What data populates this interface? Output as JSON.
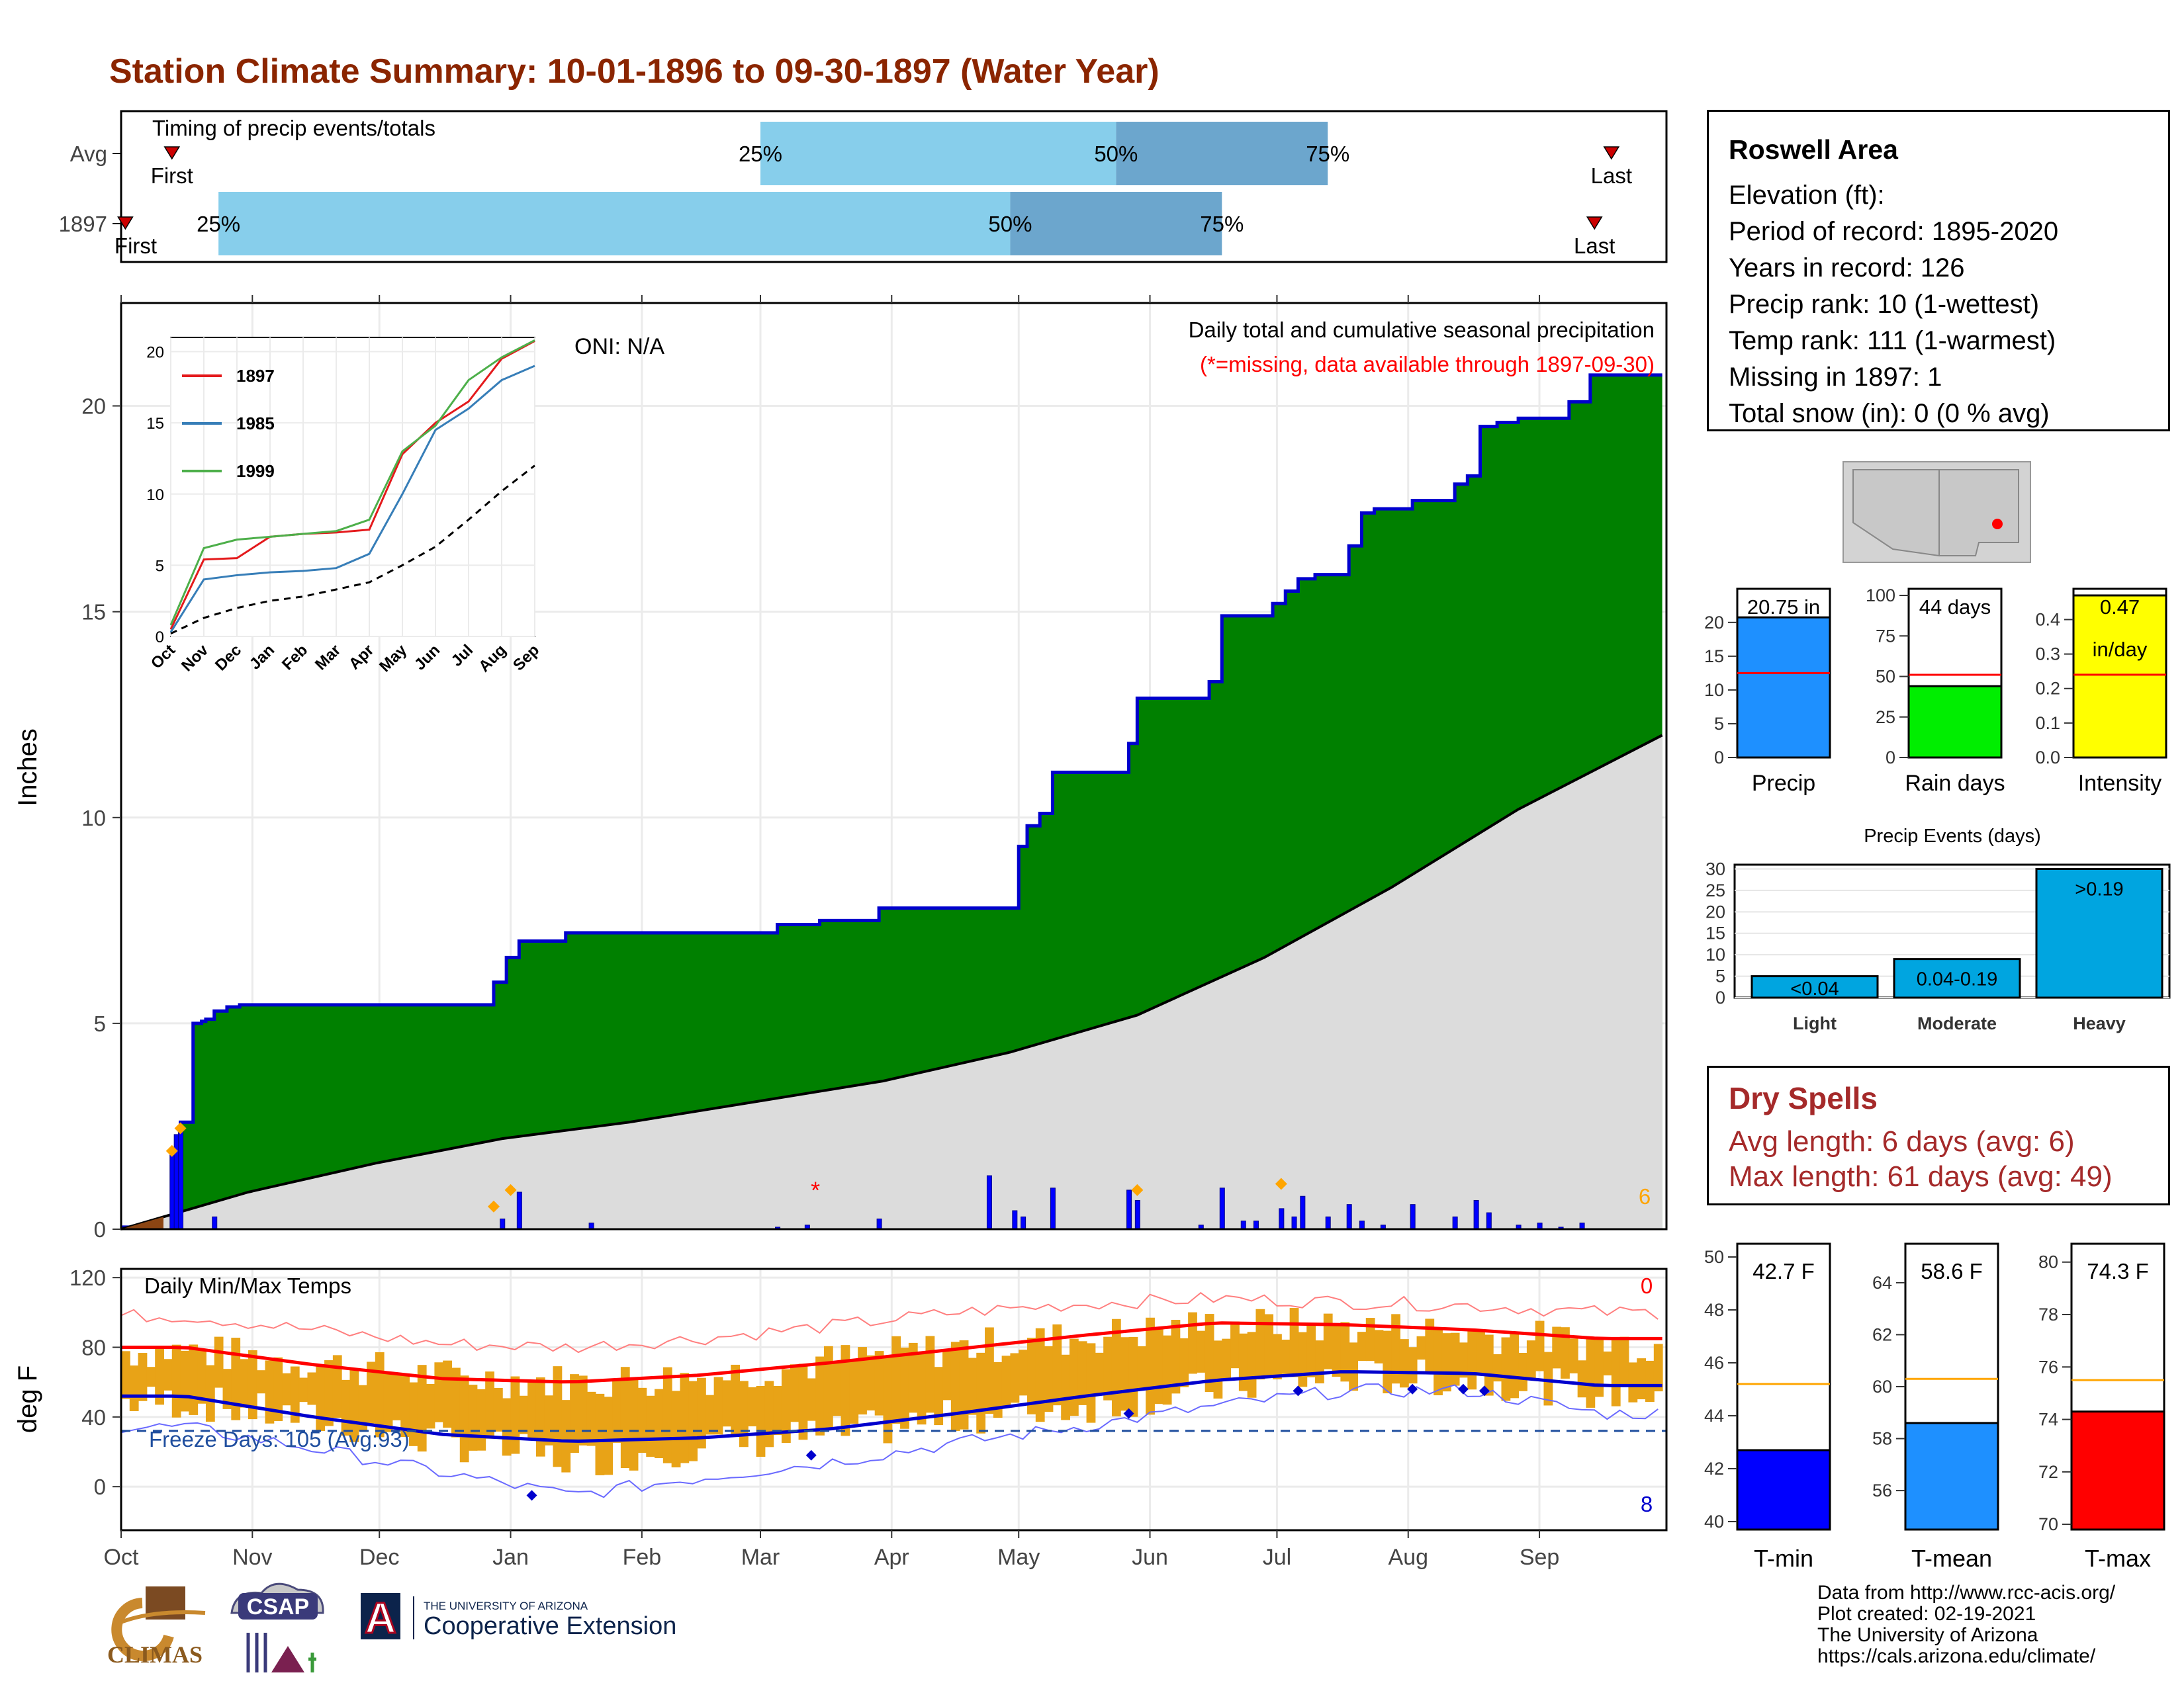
{
  "page": {
    "title": "Station Climate Summary: 10-01-1896 to 09-30-1897 (Water Year)",
    "title_color": "#8B2500"
  },
  "timing_panel": {
    "title": "Timing of precip events/totals",
    "rows": [
      {
        "label": "Avg",
        "first_label": "First",
        "last_label": "Last",
        "first_day": 12,
        "p25_day": 151,
        "p50_day": 235,
        "p75_day": 285,
        "last_day": 352
      },
      {
        "label": "1897",
        "first_label": "First",
        "last_label": "Last",
        "first_day": 1,
        "p25_day": 23,
        "p50_day": 210,
        "p75_day": 260,
        "last_day": 348
      }
    ],
    "pct_labels": [
      "25%",
      "50%",
      "75%"
    ],
    "colors": {
      "light": "#87CEEB",
      "dark": "#6CA6CD",
      "marker": "#CC0000"
    }
  },
  "precip_panel": {
    "title": "Daily total and cumulative seasonal precipitation",
    "missing_note": "(*=missing, data available through 1897-09-30)",
    "oni": "ONI: N/A",
    "y_axis_label": "Inches",
    "y_ticks": [
      "0",
      "5",
      "10",
      "15",
      "20"
    ],
    "corner_count": "6",
    "colors": {
      "cumulative_fill": "#008000",
      "cumulative_line": "#0000CD",
      "normal_fill": "#DCDCDC",
      "daily_bar": "#0000FF",
      "marker": "#FFA500"
    },
    "missing_marker": "*"
  },
  "inset": {
    "y_ticks": [
      "0",
      "5",
      "10",
      "15",
      "20"
    ],
    "x_ticks": [
      "Oct",
      "Nov",
      "Dec",
      "Jan",
      "Feb",
      "Mar",
      "Apr",
      "May",
      "Jun",
      "Jul",
      "Aug",
      "Sep"
    ],
    "legend": [
      {
        "name": "1897",
        "color": "#E41A1C"
      },
      {
        "name": "1985",
        "color": "#377EB8"
      },
      {
        "name": "1999",
        "color": "#4DAF4A"
      }
    ]
  },
  "temp_panel": {
    "title": "Daily Min/Max Temps",
    "y_axis_label": "deg F",
    "y_ticks": [
      "0",
      "40",
      "80",
      "120"
    ],
    "freeze_label": "Freeze Days: 105 (Avg:93)",
    "count_hot": "0",
    "count_cold": "8",
    "colors": {
      "bars": "#E8A317",
      "tmax_avg": "#FF0000",
      "tmin_avg": "#0000CD",
      "tmax_rec": "#FF7F7F",
      "tmin_rec": "#6A6AFF",
      "freeze": "#1F4E9E"
    }
  },
  "x_axis": {
    "months": [
      "Oct",
      "Nov",
      "Dec",
      "Jan",
      "Feb",
      "Mar",
      "Apr",
      "May",
      "Jun",
      "Jul",
      "Aug",
      "Sep"
    ]
  },
  "station": {
    "name": "Roswell Area",
    "elevation": "Elevation (ft):",
    "period": "Period of record: 1895-2020",
    "years": "Years in record: 126",
    "precip_rank": "Precip rank: 10 (1-wettest)",
    "temp_rank": "Temp rank: 111 (1-warmest)",
    "missing": "Missing in 1897: 1",
    "snow": "Total snow (in): 0 (0 % avg)"
  },
  "stat_bars": [
    {
      "label": "Precip",
      "value_label": "20.75 in",
      "value": 20.75,
      "avg": 12.5,
      "ymax": 24,
      "ticks": [
        "0",
        "5",
        "10",
        "15",
        "20"
      ],
      "color": "#1E90FF"
    },
    {
      "label": "Rain days",
      "value_label": "44 days",
      "value": 44,
      "avg": 51,
      "ymax": 100,
      "ticks": [
        "0",
        "25",
        "50",
        "75",
        "100"
      ],
      "color": "#00EE00"
    },
    {
      "label": "Intensity",
      "value_label": "0.47",
      "value_label2": "in/day",
      "value": 0.47,
      "avg": 0.24,
      "ymax": 0.47,
      "ticks": [
        "0.0",
        "0.1",
        "0.2",
        "0.3",
        "0.4"
      ],
      "color": "#FFFF00"
    }
  ],
  "events": {
    "title": "Precip Events (days)",
    "ticks": [
      "0",
      "5",
      "10",
      "15",
      "20",
      "25",
      "30"
    ],
    "categories": [
      {
        "name": "Light",
        "label": "<0.04",
        "value": 5
      },
      {
        "name": "Moderate",
        "label": "0.04-0.19",
        "value": 9
      },
      {
        "name": "Heavy",
        "label": ">0.19",
        "value": 30
      }
    ],
    "color": "#00A5E0"
  },
  "dry_spells": {
    "title": "Dry Spells",
    "avg": "Avg length: 6 days (avg: 6)",
    "max": "Max length: 61 days (avg: 49)"
  },
  "temp_bars": [
    {
      "label": "T-min",
      "value_label": "42.7 F",
      "value": 42.7,
      "avg": 45.2,
      "ymin": 39.7,
      "ymax": 50.5,
      "ticks": [
        "40",
        "42",
        "44",
        "46",
        "48",
        "50"
      ],
      "color": "#0000FF"
    },
    {
      "label": "T-mean",
      "value_label": "58.6 F",
      "value": 58.6,
      "avg": 60.3,
      "ymin": 54.5,
      "ymax": 65.5,
      "ticks": [
        "56",
        "58",
        "60",
        "62",
        "64"
      ],
      "color": "#1E90FF"
    },
    {
      "label": "T-max",
      "value_label": "74.3 F",
      "value": 74.3,
      "avg": 75.5,
      "ymin": 69.8,
      "ymax": 80.7,
      "ticks": [
        "70",
        "72",
        "74",
        "76",
        "78",
        "80"
      ],
      "color": "#FF0000"
    }
  ],
  "credits": {
    "line1": "Data from http://www.rcc-acis.org/",
    "line2": "Plot created: 02-19-2021",
    "line3": "The University of Arizona",
    "line4": "https://cals.arizona.edu/climate/"
  },
  "logos": {
    "climas": "CLIMAS",
    "csap": "CSAP",
    "ua_small": "THE UNIVERSITY OF ARIZONA",
    "ua_big": "Cooperative Extension",
    "ua_letter": "A"
  },
  "chart_data": [
    {
      "type": "area",
      "title": "Daily total and cumulative seasonal precipitation",
      "ylabel": "Inches",
      "ylim": [
        0,
        22.5
      ],
      "x_unit": "day of water year (Oct 1 = 0)",
      "series": [
        {
          "name": "Cumulative precip 1897",
          "x": [
            0,
            12,
            14,
            17,
            19,
            20,
            22,
            25,
            28,
            35,
            40,
            45,
            60,
            88,
            91,
            94,
            105,
            110,
            140,
            155,
            165,
            173,
            179,
            205,
            212,
            214,
            217,
            220,
            228,
            238,
            240,
            243,
            250,
            257,
            260,
            268,
            272,
            275,
            278,
            282,
            290,
            293,
            296,
            305,
            315,
            318,
            321,
            325,
            330,
            342,
            347,
            364
          ],
          "values": [
            0.05,
            0.3,
            2.6,
            5.0,
            5.05,
            5.1,
            5.3,
            5.4,
            5.45,
            5.45,
            5.45,
            5.45,
            5.45,
            6.0,
            6.6,
            7.0,
            7.2,
            7.2,
            7.2,
            7.4,
            7.5,
            7.5,
            7.8,
            7.8,
            9.3,
            9.8,
            10.1,
            11.1,
            11.1,
            11.8,
            12.9,
            12.9,
            12.9,
            13.3,
            14.9,
            14.9,
            15.2,
            15.5,
            15.8,
            15.9,
            16.6,
            17.4,
            17.5,
            17.7,
            18.1,
            18.3,
            19.5,
            19.6,
            19.7,
            20.1,
            20.75,
            20.75
          ]
        },
        {
          "name": "Normal cumulative",
          "x": [
            0,
            30,
            60,
            90,
            120,
            150,
            180,
            210,
            240,
            270,
            300,
            330,
            364
          ],
          "values": [
            0.0,
            0.9,
            1.6,
            2.2,
            2.6,
            3.1,
            3.6,
            4.3,
            5.2,
            6.6,
            8.3,
            10.2,
            12.0
          ]
        },
        {
          "name": "Daily precip",
          "x": [
            12,
            13,
            14,
            22,
            90,
            94,
            111,
            155,
            162,
            179,
            205,
            211,
            213,
            220,
            238,
            240,
            255,
            260,
            265,
            268,
            274,
            277,
            279,
            285,
            290,
            293,
            298,
            305,
            315,
            320,
            323,
            330,
            335,
            340,
            345
          ],
          "values": [
            1.8,
            2.3,
            2.5,
            0.3,
            0.25,
            0.9,
            0.15,
            0.05,
            0.1,
            0.25,
            1.3,
            0.45,
            0.3,
            1.0,
            0.95,
            0.7,
            0.1,
            1.0,
            0.2,
            0.2,
            0.5,
            0.3,
            0.8,
            0.3,
            0.6,
            0.2,
            0.1,
            0.6,
            0.3,
            0.7,
            0.4,
            0.1,
            0.15,
            0.05,
            0.15
          ]
        }
      ]
    },
    {
      "type": "line",
      "ylim": [
        0,
        21
      ],
      "categories": [
        "Oct",
        "Nov",
        "Dec",
        "Jan",
        "Feb",
        "Mar",
        "Apr",
        "May",
        "Jun",
        "Jul",
        "Aug",
        "Sep"
      ],
      "series": [
        {
          "name": "1897",
          "values": [
            0.5,
            5.4,
            5.5,
            7.0,
            7.2,
            7.3,
            7.5,
            12.8,
            15.0,
            16.5,
            19.5,
            20.75
          ]
        },
        {
          "name": "1985",
          "values": [
            0.3,
            4.0,
            4.3,
            4.5,
            4.6,
            4.8,
            5.8,
            10.0,
            14.5,
            16.0,
            18.0,
            19.0
          ]
        },
        {
          "name": "1999",
          "values": [
            0.8,
            6.2,
            6.8,
            7.0,
            7.2,
            7.4,
            8.2,
            13.0,
            14.8,
            18.0,
            19.6,
            20.8
          ]
        },
        {
          "name": "Average",
          "values": [
            0.2,
            1.3,
            2.0,
            2.5,
            2.8,
            3.3,
            3.8,
            5.0,
            6.3,
            8.2,
            10.2,
            12.0
          ]
        }
      ]
    },
    {
      "type": "line",
      "title": "Daily Min/Max Temps",
      "ylabel": "deg F",
      "ylim": [
        -25,
        125
      ],
      "categories": [
        "Oct",
        "Nov",
        "Dec",
        "Jan",
        "Feb",
        "Mar",
        "Apr",
        "May",
        "Jun",
        "Jul",
        "Aug",
        "Sep"
      ],
      "series": [
        {
          "name": "Avg Tmax",
          "values": [
            80,
            70,
            62,
            60,
            64,
            71,
            79,
            87,
            94,
            93,
            90,
            85
          ]
        },
        {
          "name": "Avg Tmin",
          "values": [
            52,
            40,
            30,
            26,
            28,
            33,
            42,
            52,
            61,
            66,
            65,
            58
          ]
        },
        {
          "name": "Obs Tmax",
          "values": [
            78,
            71,
            63,
            60,
            63,
            72,
            80,
            86,
            93,
            92,
            88,
            82
          ]
        },
        {
          "name": "Obs Tmin",
          "values": [
            49,
            38,
            26,
            15,
            24,
            30,
            40,
            47,
            57,
            63,
            62,
            54
          ]
        },
        {
          "name": "Freeze line",
          "values": [
            32,
            32,
            32,
            32,
            32,
            32,
            32,
            32,
            32,
            32,
            32,
            32
          ]
        }
      ]
    },
    {
      "type": "bar",
      "categories": [
        "Precip",
        "Rain days",
        "Intensity"
      ],
      "values": [
        20.75,
        44,
        0.47
      ]
    },
    {
      "type": "bar",
      "title": "Precip Events (days)",
      "categories": [
        "Light",
        "Moderate",
        "Heavy"
      ],
      "values": [
        5,
        9,
        30
      ],
      "ylim": [
        0,
        31
      ]
    },
    {
      "type": "bar",
      "categories": [
        "T-min",
        "T-mean",
        "T-max"
      ],
      "values": [
        42.7,
        58.6,
        74.3
      ]
    }
  ]
}
